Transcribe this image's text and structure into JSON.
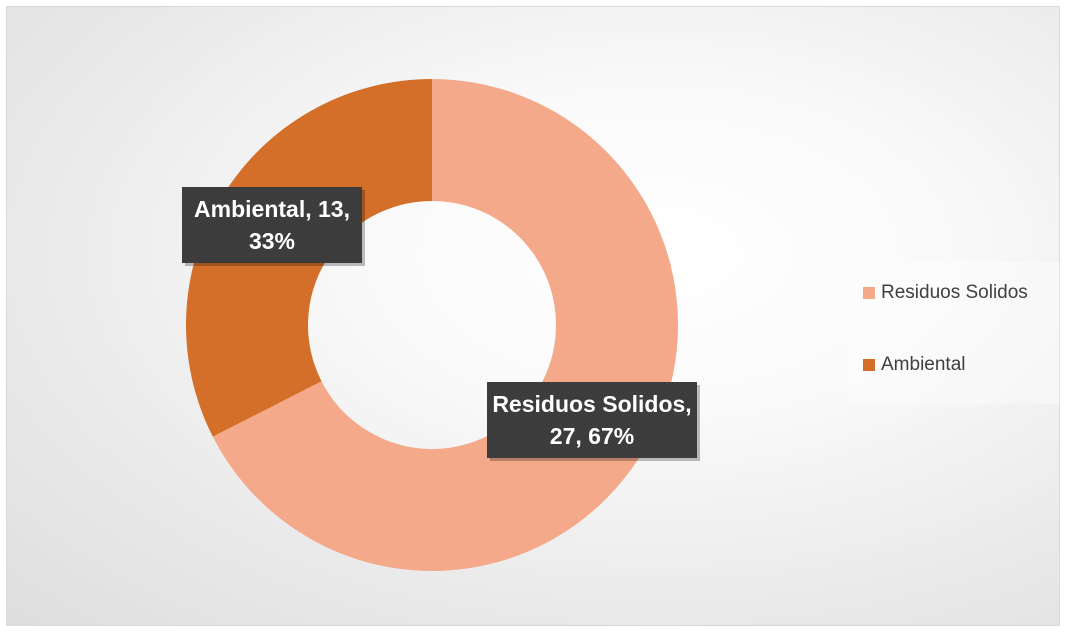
{
  "chart_data": {
    "type": "pie",
    "variant": "doughnut",
    "series": [
      {
        "name": "Residuos Solidos",
        "value": 27,
        "percent": 67,
        "color": "#F4A98A"
      },
      {
        "name": "Ambiental",
        "value": 13,
        "percent": 33,
        "color": "#D46F2A"
      }
    ],
    "data_labels": [
      {
        "lines": [
          "Residuos Solidos,",
          "27, 67%"
        ]
      },
      {
        "lines": [
          "Ambiental, 13,",
          "33%"
        ]
      }
    ],
    "legend": {
      "placement": "right",
      "items": [
        "Residuos Solidos",
        "Ambiental"
      ]
    },
    "label_background": "#3A3A3A"
  }
}
